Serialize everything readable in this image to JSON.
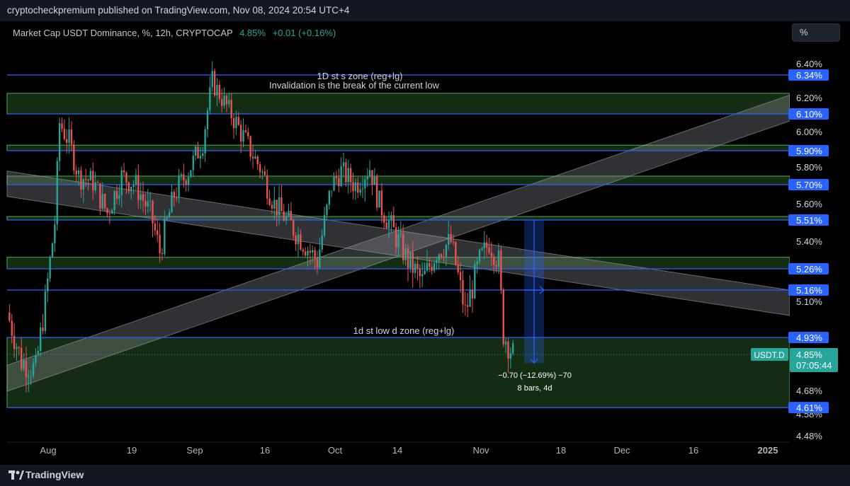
{
  "header": {
    "publisher": "cryptocheckpremium published on TradingView.com, Nov 08, 2024 20:54 UTC+4"
  },
  "legend": {
    "symbol": "Market Cap USDT Dominance, %, 12h, CRYPTOCAP",
    "last": "4.85%",
    "change": "+0.01 (+0.16%)"
  },
  "toolbar": {
    "scale_button": "%"
  },
  "footer": {
    "brand": "TradingView"
  },
  "colors": {
    "background": "#000000",
    "up_candle": "#26a69a",
    "down_candle": "#ef5350",
    "level_line": "#2962ff",
    "zone_border": "#4caf50",
    "zone_fill": "#1b3a1b",
    "channel": "#9598a1"
  },
  "chart_data": {
    "type": "candlestick",
    "symbol": "USDT.D",
    "interval": "12h",
    "y_scale": "percent",
    "ylim": [
      4.48,
      6.5
    ],
    "y_ticks": [
      "6.40%",
      "6.20%",
      "6.00%",
      "5.80%",
      "5.60%",
      "5.40%",
      "5.10%",
      "4.68%",
      "4.58%",
      "4.48%"
    ],
    "x_ticks": [
      "Aug",
      "19",
      "Sep",
      "16",
      "Oct",
      "14",
      "Nov",
      "18",
      "Dec",
      "16",
      "2025"
    ],
    "x_range": [
      "2024-07-25",
      "2025-01-05"
    ],
    "close_path": [
      [
        "2024-07-25",
        5.05
      ],
      [
        "2024-07-28",
        4.82
      ],
      [
        "2024-07-31",
        4.78
      ],
      [
        "2024-08-02",
        5.1
      ],
      [
        "2024-08-04",
        5.5
      ],
      [
        "2024-08-05",
        6.05
      ],
      [
        "2024-08-07",
        5.95
      ],
      [
        "2024-08-09",
        5.75
      ],
      [
        "2024-08-12",
        5.72
      ],
      [
        "2024-08-15",
        5.55
      ],
      [
        "2024-08-18",
        5.75
      ],
      [
        "2024-08-21",
        5.7
      ],
      [
        "2024-08-24",
        5.55
      ],
      [
        "2024-08-26",
        5.35
      ],
      [
        "2024-08-29",
        5.65
      ],
      [
        "2024-09-01",
        5.78
      ],
      [
        "2024-09-04",
        5.95
      ],
      [
        "2024-09-06",
        6.3
      ],
      [
        "2024-09-08",
        6.2
      ],
      [
        "2024-09-11",
        6.05
      ],
      [
        "2024-09-14",
        5.9
      ],
      [
        "2024-09-16",
        5.8
      ],
      [
        "2024-09-19",
        5.6
      ],
      [
        "2024-09-22",
        5.5
      ],
      [
        "2024-09-25",
        5.4
      ],
      [
        "2024-09-28",
        5.3
      ],
      [
        "2024-10-01",
        5.7
      ],
      [
        "2024-10-03",
        5.78
      ],
      [
        "2024-10-06",
        5.7
      ],
      [
        "2024-10-09",
        5.8
      ],
      [
        "2024-10-11",
        5.6
      ],
      [
        "2024-10-14",
        5.45
      ],
      [
        "2024-10-17",
        5.3
      ],
      [
        "2024-10-20",
        5.2
      ],
      [
        "2024-10-23",
        5.35
      ],
      [
        "2024-10-26",
        5.4
      ],
      [
        "2024-10-29",
        5.05
      ],
      [
        "2024-11-01",
        5.3
      ],
      [
        "2024-11-03",
        5.4
      ],
      [
        "2024-11-05",
        5.3
      ],
      [
        "2024-11-06",
        4.95
      ],
      [
        "2024-11-08",
        4.85
      ]
    ],
    "last_price": {
      "symbol": "USDT.D",
      "value": "4.85%",
      "countdown": "07:05:44"
    },
    "levels": [
      {
        "value": 6.34,
        "label": "6.34%"
      },
      {
        "value": 6.1,
        "label": "6.10%"
      },
      {
        "value": 5.9,
        "label": "5.90%"
      },
      {
        "value": 5.7,
        "label": "5.70%"
      },
      {
        "value": 5.51,
        "label": "5.51%"
      },
      {
        "value": 5.26,
        "label": "5.26%"
      },
      {
        "value": 5.16,
        "label": "5.16%"
      },
      {
        "value": 4.93,
        "label": "4.93%"
      },
      {
        "value": 4.61,
        "label": "4.61%"
      }
    ],
    "zones": [
      {
        "top": 6.23,
        "bottom": 6.1,
        "label": "1D st s zone (reg+lg)",
        "note": "Invalidation is the break of the current low"
      },
      {
        "top": 5.93,
        "bottom": 5.9
      },
      {
        "top": 5.75,
        "bottom": 5.7
      },
      {
        "top": 5.53,
        "bottom": 5.51
      },
      {
        "top": 5.32,
        "bottom": 5.26
      },
      {
        "top": 4.93,
        "bottom": 4.61,
        "label": "1d st low d zone (reg+lg)"
      }
    ],
    "channels": [
      {
        "from": [
          "2024-07-25",
          4.8
        ],
        "to": [
          "2025-01-05",
          6.22
        ],
        "width": 0.12
      },
      {
        "from": [
          "2024-07-25",
          5.78
        ],
        "to": [
          "2025-01-05",
          5.16
        ],
        "width": 0.14
      }
    ],
    "measure": {
      "from": [
        "2024-11-08",
        5.51
      ],
      "to": [
        "2024-11-08",
        4.81
      ],
      "change": "−0.70 (−12.69%) −70",
      "span": "8 bars, 4d"
    }
  }
}
